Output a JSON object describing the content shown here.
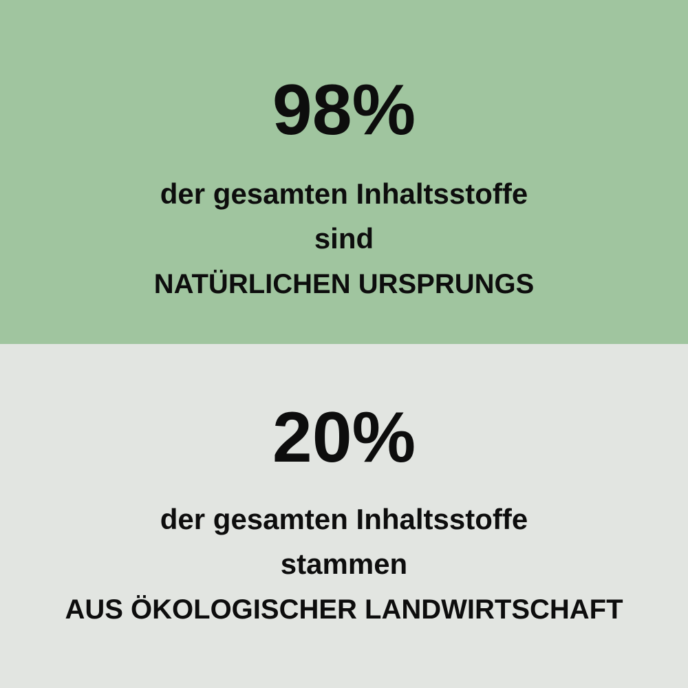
{
  "colors": {
    "top_background": "#a0c59f",
    "bottom_background": "#e2e5e1",
    "text": "#0d0d0d"
  },
  "top": {
    "percentage": "98%",
    "line1": "der gesamten Inhaltsstoffe",
    "line2": "sind",
    "line3": "NATÜRLICHEN URSPRUNGS"
  },
  "bottom": {
    "percentage": "20%",
    "line1": "der gesamten Inhaltsstoffe",
    "line2": "stammen",
    "line3": "AUS ÖKOLOGISCHER LANDWIRTSCHAFT"
  }
}
